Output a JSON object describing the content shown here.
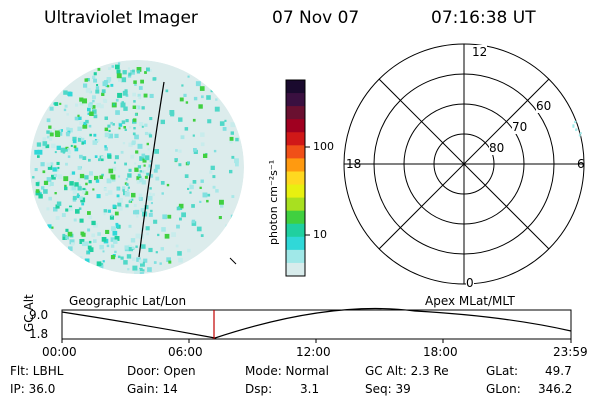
{
  "header": {
    "title": "Ultraviolet Imager",
    "date": "07 Nov 07",
    "time": "07:16:38 UT"
  },
  "colorbar": {
    "unit_label": "photon cm⁻²s⁻¹",
    "ticks": [
      "100",
      "10"
    ],
    "colors": [
      "#1a0a2e",
      "#3a1040",
      "#6a1030",
      "#a00020",
      "#d01818",
      "#f05018",
      "#ff9a10",
      "#ffd820",
      "#e8f010",
      "#a8e020",
      "#40d040",
      "#20d0a0",
      "#30d8d8",
      "#a0e8e8",
      "#d8ecec"
    ]
  },
  "polar_grid": {
    "mlt_labels": {
      "top": "12",
      "left": "18",
      "right": "6",
      "bottom": "0"
    },
    "lat_labels": [
      "60",
      "70",
      "80"
    ]
  },
  "panels": {
    "left_label": "Geographic Lat/Lon",
    "right_label": "Apex MLat/MLT"
  },
  "gc_plot": {
    "axis_label": "GC Alt",
    "y_ticks": [
      "9.0",
      "1.8"
    ],
    "x_ticks": [
      "00:00",
      "06:00",
      "12:00",
      "18:00",
      "23:59"
    ]
  },
  "status": {
    "flt": "Flt: LBHL",
    "ip": "IP: 36.0",
    "door": "Door: Open",
    "gain": "Gain: 14",
    "mode": "Mode: Normal",
    "dsp_label": "Dsp:",
    "dsp_value": "3.1",
    "gc_alt": "GC Alt: 2.3 Re",
    "seq": "Seq: 39",
    "glat_label": "GLat:",
    "glat_value": "49.7",
    "glon_label": "GLon:",
    "glon_value": "346.2"
  }
}
